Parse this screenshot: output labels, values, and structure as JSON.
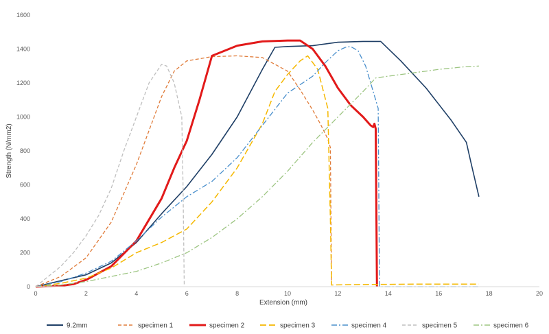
{
  "chart_data": {
    "type": "line",
    "title": "",
    "xlabel": "Extension (mm)",
    "ylabel": "Strength (N/mm2)",
    "xlim": [
      0,
      20
    ],
    "ylim": [
      0,
      1600
    ],
    "xticks": [
      0,
      2,
      4,
      6,
      8,
      10,
      12,
      14,
      16,
      18,
      20
    ],
    "yticks": [
      0,
      200,
      400,
      600,
      800,
      1000,
      1200,
      1400,
      1600
    ],
    "grid": false,
    "legend_position": "bottom",
    "series": [
      {
        "name": "9.2mm",
        "color": "#1f3f66",
        "dash": "solid",
        "width": 1.6,
        "x": [
          0,
          1,
          2,
          3,
          4,
          5,
          6,
          7,
          8,
          9,
          9.5,
          10,
          11,
          12,
          13,
          13.7,
          14.5,
          15.5,
          16.5,
          17.1,
          17.3,
          17.6
        ],
        "y": [
          0,
          35,
          70,
          140,
          260,
          430,
          590,
          780,
          1000,
          1280,
          1410,
          1415,
          1420,
          1440,
          1445,
          1445,
          1330,
          1170,
          980,
          850,
          720,
          530
        ]
      },
      {
        "name": "specimen 1",
        "color": "#e07b39",
        "dash": "dashed",
        "width": 1.3,
        "x": [
          0,
          1,
          2,
          3,
          4,
          4.5,
          5,
          5.5,
          6,
          7,
          8,
          9,
          10,
          10.5,
          11,
          11.3,
          11.6,
          11.7,
          11.75
        ],
        "y": [
          0,
          60,
          170,
          380,
          720,
          920,
          1120,
          1270,
          1330,
          1355,
          1360,
          1350,
          1270,
          1160,
          1040,
          960,
          870,
          820,
          0
        ]
      },
      {
        "name": "specimen 2",
        "color": "#e21a1a",
        "dash": "solid",
        "width": 3,
        "x": [
          0,
          1,
          1.5,
          2,
          3,
          4,
          5,
          5.5,
          6,
          6.5,
          7,
          7.5,
          8,
          9,
          10,
          10.5,
          11,
          11.5,
          12,
          12.5,
          13,
          13.3,
          13.4,
          13.45,
          13.5,
          13.55
        ],
        "y": [
          0,
          5,
          15,
          40,
          120,
          270,
          520,
          700,
          860,
          1100,
          1360,
          1390,
          1420,
          1445,
          1450,
          1450,
          1400,
          1300,
          1170,
          1070,
          1000,
          950,
          940,
          960,
          930,
          0
        ]
      },
      {
        "name": "specimen 3",
        "color": "#f5b800",
        "dash": "longdash",
        "width": 1.5,
        "x": [
          0,
          1,
          2,
          3,
          4,
          5,
          6,
          7,
          8,
          9,
          9.5,
          10,
          10.5,
          10.8,
          11.2,
          11.6,
          11.7,
          11.75,
          12.5,
          15,
          17.6
        ],
        "y": [
          0,
          20,
          50,
          110,
          200,
          260,
          340,
          500,
          700,
          960,
          1150,
          1250,
          1330,
          1360,
          1280,
          1050,
          400,
          10,
          12,
          15,
          15
        ]
      },
      {
        "name": "specimen 4",
        "color": "#4a8fcc",
        "dash": "dashdot",
        "width": 1.3,
        "x": [
          0,
          1,
          2,
          3,
          4,
          5,
          6,
          7,
          8,
          9,
          10,
          11,
          11.5,
          12,
          12.3,
          12.5,
          12.8,
          13.1,
          13.4,
          13.6,
          13.65,
          13.7,
          15,
          17.6
        ],
        "y": [
          0,
          30,
          80,
          150,
          270,
          410,
          530,
          620,
          760,
          950,
          1140,
          1240,
          1320,
          1390,
          1410,
          1415,
          1390,
          1300,
          1150,
          1050,
          0,
          0,
          0,
          0
        ]
      },
      {
        "name": "specimen 5",
        "color": "#bfbfbf",
        "dash": "dashed",
        "width": 1.3,
        "x": [
          0,
          0.5,
          1,
          1.5,
          2,
          2.5,
          3,
          3.5,
          4,
          4.5,
          5,
          5.2,
          5.5,
          5.8,
          5.85,
          5.9
        ],
        "y": [
          0,
          60,
          120,
          200,
          300,
          420,
          580,
          800,
          1000,
          1200,
          1310,
          1300,
          1200,
          1000,
          600,
          0
        ]
      },
      {
        "name": "specimen 6",
        "color": "#9dc582",
        "dash": "dashdot",
        "width": 1.3,
        "x": [
          0,
          1,
          2,
          3,
          4,
          5,
          6,
          7,
          8,
          9,
          10,
          11,
          12,
          13,
          13.5,
          14,
          15,
          16,
          17,
          17.6
        ],
        "y": [
          0,
          10,
          30,
          60,
          90,
          140,
          200,
          290,
          400,
          530,
          680,
          850,
          1000,
          1150,
          1230,
          1240,
          1260,
          1280,
          1295,
          1300
        ]
      }
    ]
  }
}
